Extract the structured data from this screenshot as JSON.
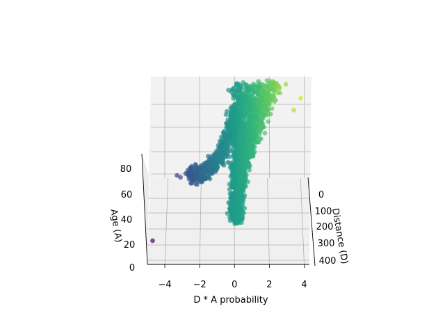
{
  "chart_data": {
    "type": "scatter",
    "projection": "3d",
    "title": "",
    "xlabel": "D * A probability",
    "ylabel": "Distance (D)",
    "zlabel": "Age (A)",
    "xlim": [
      -5,
      4.3
    ],
    "ylim": [
      -60,
      420
    ],
    "zlim": [
      0,
      95
    ],
    "x_ticks": [
      -4,
      -2,
      0,
      2,
      4
    ],
    "y_ticks": [
      0,
      100,
      200,
      300,
      400
    ],
    "z_ticks": [
      0,
      20,
      40,
      60,
      80
    ],
    "x_tick_labels": [
      "−4",
      "−2",
      "0",
      "2",
      "4"
    ],
    "y_tick_labels": [
      "0",
      "100",
      "200",
      "300",
      "400"
    ],
    "z_tick_labels": [
      "0",
      "20",
      "40",
      "60",
      "80"
    ],
    "grid": true,
    "legend": "none",
    "colormap": "viridis",
    "color_by": "x",
    "pane_color": "#f2f2f2",
    "grid_color": "#b0b0b0",
    "point_alpha": 0.7,
    "cluster": {
      "description_free_parameters": true,
      "core_x_range": [
        -0.3,
        3.2
      ],
      "core_age_range": [
        20,
        95
      ],
      "core_distance_range": [
        0,
        300
      ],
      "tail_points": [
        {
          "x": -4.7,
          "age": 12
        },
        {
          "x": -3.3,
          "age": 45
        },
        {
          "x": -3.1,
          "age": 44
        },
        {
          "x": -2.8,
          "age": 46
        },
        {
          "x": -2.6,
          "age": 47
        },
        {
          "x": -2.2,
          "age": 50
        },
        {
          "x": -1.5,
          "age": 45
        },
        {
          "x": 3.8,
          "age": 84
        },
        {
          "x": 3.4,
          "age": 78
        }
      ]
    }
  }
}
